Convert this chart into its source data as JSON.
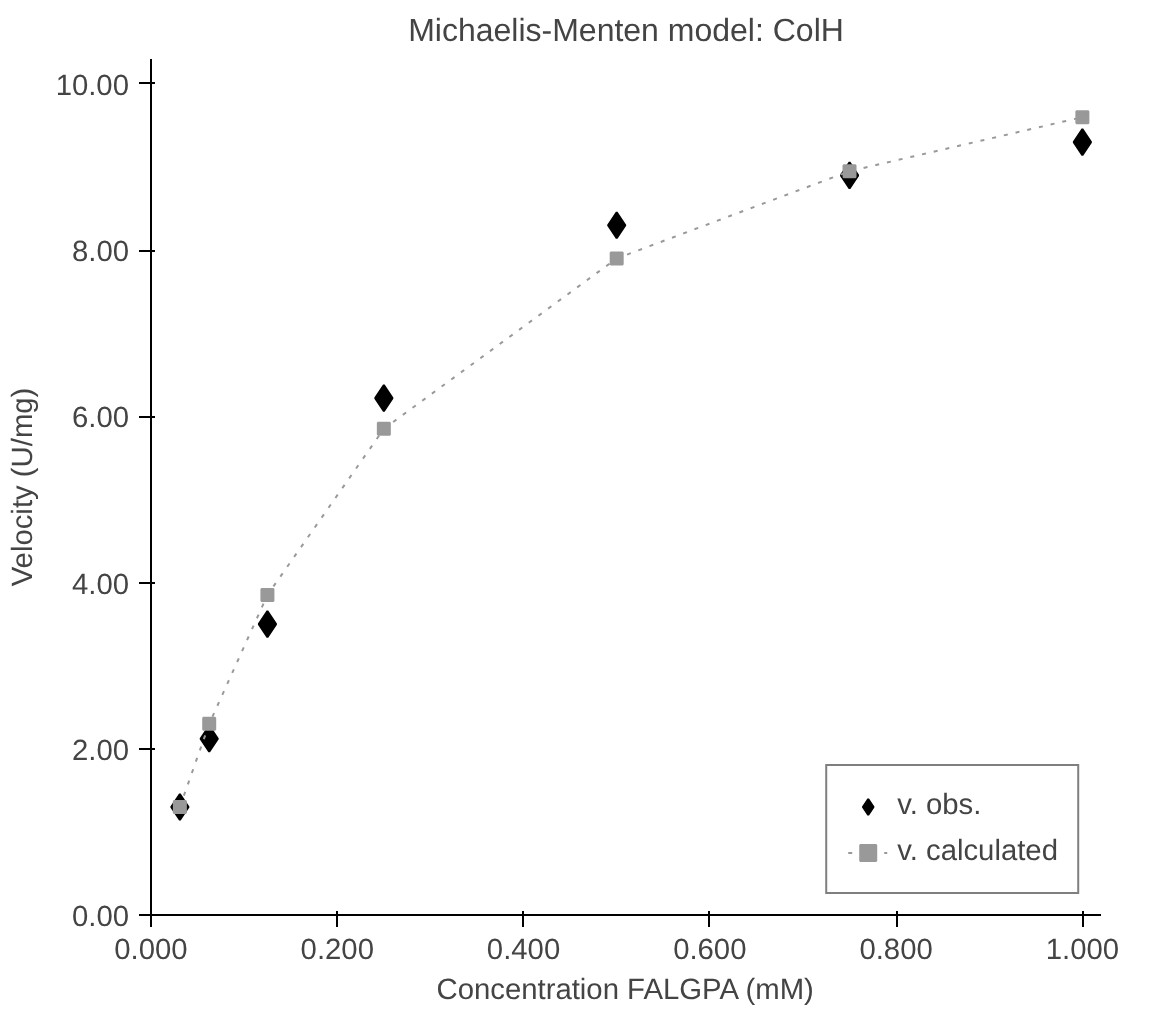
{
  "chart_data": {
    "type": "scatter",
    "title": "Michaelis-Menten model: ColH",
    "xlabel": "Concentration FALGPA (mM)",
    "ylabel": "Velocity (U/mg)",
    "x": [
      0.031,
      0.0625,
      0.125,
      0.25,
      0.5,
      0.75,
      1.0
    ],
    "series": [
      {
        "name": "v. obs.",
        "marker": "diamond",
        "color": "#000000",
        "values": [
          1.3,
          2.12,
          3.5,
          6.22,
          8.3,
          8.9,
          9.3
        ]
      },
      {
        "name": "v. calculated",
        "type": "line",
        "marker": "square",
        "line_style": "dotted",
        "color": "#999999",
        "values": [
          1.3,
          2.3,
          3.85,
          5.85,
          7.9,
          8.95,
          9.6
        ]
      }
    ],
    "xlim": [
      0,
      1.02
    ],
    "ylim": [
      0,
      10.3
    ],
    "xticks": [
      {
        "value": 0,
        "label": "0.000"
      },
      {
        "value": 0.2,
        "label": "0.200"
      },
      {
        "value": 0.4,
        "label": "0.400"
      },
      {
        "value": 0.6,
        "label": "0.600"
      },
      {
        "value": 0.8,
        "label": "0.800"
      },
      {
        "value": 1.0,
        "label": "1.000"
      }
    ],
    "yticks": [
      {
        "value": 0,
        "label": "0.00"
      },
      {
        "value": 2,
        "label": "2.00"
      },
      {
        "value": 4,
        "label": "4.00"
      },
      {
        "value": 6,
        "label": "6.00"
      },
      {
        "value": 8,
        "label": "8.00"
      },
      {
        "value": 10,
        "label": "10.00"
      }
    ],
    "grid": false,
    "legend": "bottom right"
  }
}
